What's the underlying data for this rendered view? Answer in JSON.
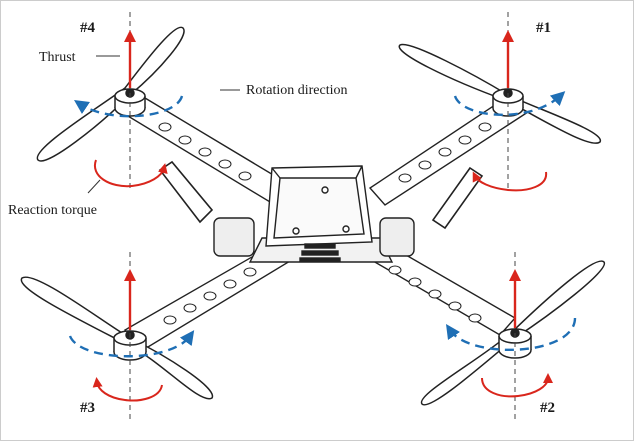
{
  "labels": {
    "motor_4": "#4",
    "motor_1": "#1",
    "motor_3": "#3",
    "motor_2": "#2",
    "thrust": "Thrust",
    "rotation_direction": "Rotation direction",
    "reaction_torque": "Reaction torque"
  },
  "colors": {
    "thrust_arrow": "#d9261c",
    "torque_arrow": "#d9261c",
    "rotation_arc": "#1f6fb5",
    "frame": "#222222",
    "axis": "#444444"
  }
}
